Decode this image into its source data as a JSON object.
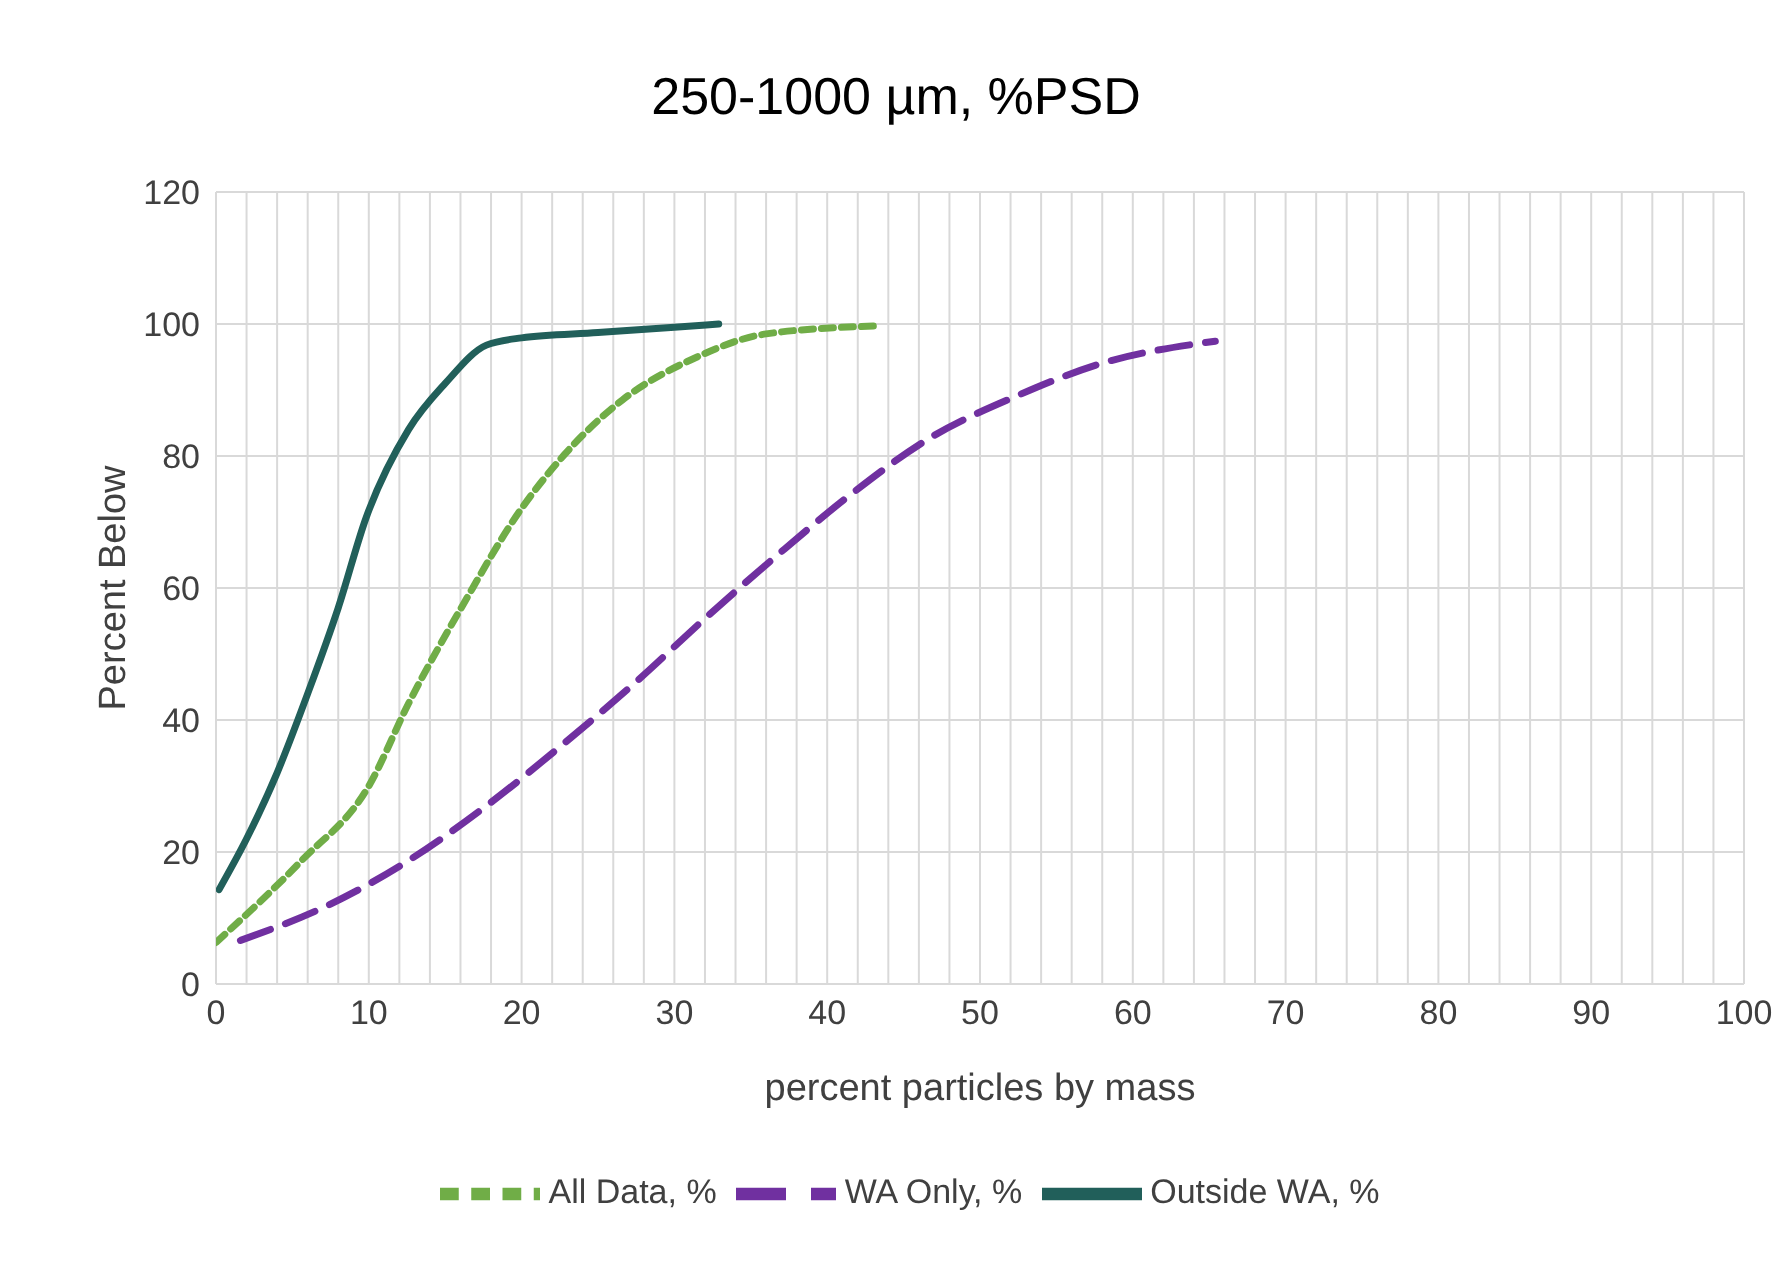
{
  "chart_data": {
    "type": "line",
    "title": "250-1000 µm, %PSD",
    "xlabel": "percent particles by mass",
    "ylabel": "Percent Below",
    "xlim": [
      0,
      100
    ],
    "xticks": [
      0,
      {
        "value": 2,
        "label": null
      },
      {
        "value": 4,
        "label": null
      },
      {
        "value": 6,
        "label": null
      },
      {
        "value": 8,
        "label": null
      },
      10,
      {
        "value": 12,
        "label": null
      },
      {
        "value": 14,
        "label": null
      },
      {
        "value": 16,
        "label": null
      },
      {
        "value": 18,
        "label": null
      },
      20,
      {
        "value": 22,
        "label": null
      },
      {
        "value": 24,
        "label": null
      },
      {
        "value": 26,
        "label": null
      },
      {
        "value": 28,
        "label": null
      },
      30,
      {
        "value": 32,
        "label": null
      },
      {
        "value": 34,
        "label": null
      },
      {
        "value": 36,
        "label": null
      },
      {
        "value": 38,
        "label": null
      },
      40,
      {
        "value": 42,
        "label": null
      },
      {
        "value": 44,
        "label": null
      },
      {
        "value": 46,
        "label": null
      },
      {
        "value": 48,
        "label": null
      },
      50,
      {
        "value": 52,
        "label": null
      },
      {
        "value": 54,
        "label": null
      },
      {
        "value": 56,
        "label": null
      },
      {
        "value": 58,
        "label": null
      },
      60,
      {
        "value": 62,
        "label": null
      },
      {
        "value": 64,
        "label": null
      },
      {
        "value": 66,
        "label": null
      },
      {
        "value": 68,
        "label": null
      },
      70,
      {
        "value": 72,
        "label": null
      },
      {
        "value": 74,
        "label": null
      },
      {
        "value": 76,
        "label": null
      },
      {
        "value": 78,
        "label": null
      },
      80,
      {
        "value": 82,
        "label": null
      },
      {
        "value": 84,
        "label": null
      },
      {
        "value": 86,
        "label": null
      },
      {
        "value": 88,
        "label": null
      },
      90,
      {
        "value": 92,
        "label": null
      },
      {
        "value": 94,
        "label": null
      },
      {
        "value": 96,
        "label": null
      },
      {
        "value": 98,
        "label": null
      },
      100
    ],
    "ylim": [
      0,
      120
    ],
    "yticks": [
      0,
      20,
      40,
      60,
      80,
      100,
      120
    ],
    "grid": true,
    "legend": "bottom",
    "marker": "none",
    "series": [
      {
        "name": "All Data, %",
        "color": "#70ad47",
        "line_style": "dotted",
        "x": [
          0,
          5.6,
          10,
          12.6,
          16.3,
          19.8,
          22.8,
          26.6,
          31.2,
          36,
          43.2
        ],
        "values": [
          6.3,
          18.7,
          30,
          42.5,
          58,
          71.4,
          80.2,
          88.5,
          94.7,
          98.5,
          99.7
        ]
      },
      {
        "name": "WA Only, %",
        "color": "#7030a0",
        "line_style": "dashed",
        "x": [
          1.6,
          7.4,
          12.6,
          17.7,
          22.8,
          27.5,
          32.2,
          36.9,
          41.5,
          46.7,
          52.3,
          57.9,
          65.4
        ],
        "values": [
          6.6,
          12,
          18.7,
          27,
          36.5,
          45.8,
          55.8,
          65.3,
          74.1,
          82.7,
          89,
          94,
          97.4
        ]
      },
      {
        "name": "Outside WA, %",
        "color": "#215f5a",
        "line_style": "solid",
        "x": [
          0.2,
          2,
          4,
          6,
          8,
          9.8,
          12.6,
          15,
          17.7,
          20,
          25,
          30,
          32.9
        ],
        "values": [
          14.3,
          22,
          32,
          44,
          57,
          70.5,
          84,
          91,
          96.8,
          97.9,
          98.7,
          99.5,
          100
        ]
      }
    ]
  }
}
